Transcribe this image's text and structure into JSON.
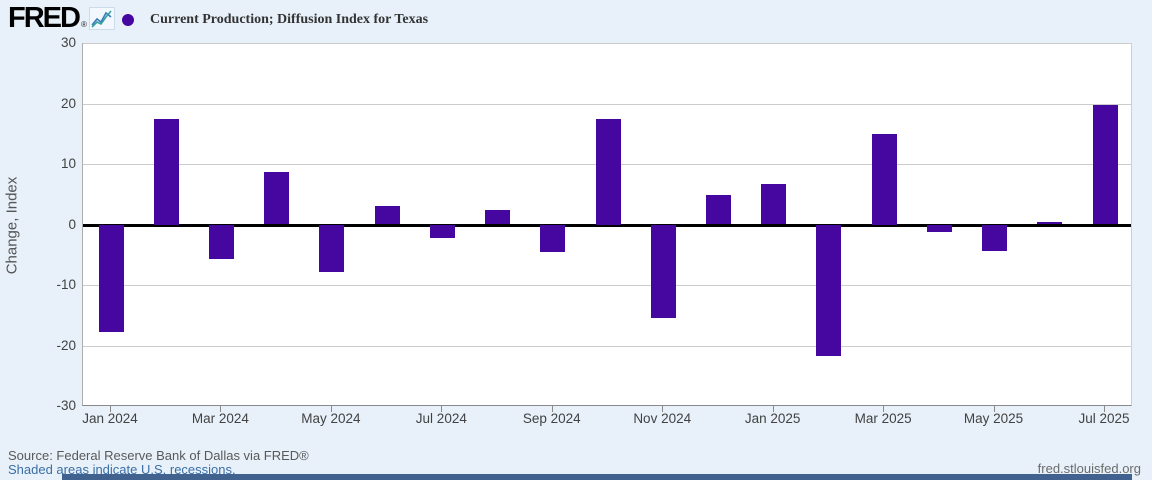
{
  "header": {
    "logo_text": "FRED",
    "registered_mark": "®",
    "legend_label": "Current Production; Diffusion Index for Texas"
  },
  "chart_data": {
    "type": "bar",
    "title": "Current Production; Diffusion Index for Texas",
    "xlabel": "",
    "ylabel": "Change, Index",
    "ylim": [
      -30,
      30
    ],
    "y_ticks": [
      30,
      20,
      10,
      0,
      -10,
      -20,
      -30
    ],
    "x_tick_labels": [
      "Jan 2024",
      "Mar 2024",
      "May 2024",
      "Jul 2024",
      "Sep 2024",
      "Nov 2024",
      "Jan 2025",
      "Mar 2025",
      "May 2025",
      "Jul 2025"
    ],
    "categories": [
      "Jan 2024",
      "Feb 2024",
      "Mar 2024",
      "Apr 2024",
      "May 2024",
      "Jun 2024",
      "Jul 2024",
      "Aug 2024",
      "Sep 2024",
      "Oct 2024",
      "Nov 2024",
      "Dec 2024",
      "Jan 2025",
      "Feb 2025",
      "Mar 2025",
      "Apr 2025",
      "May 2025",
      "Jun 2025",
      "Jul 2025"
    ],
    "values": [
      -17.8,
      17.5,
      -5.7,
      8.6,
      -7.8,
      3.1,
      -2.2,
      2.4,
      -4.6,
      17.5,
      -15.5,
      4.9,
      6.7,
      -21.7,
      15.0,
      -1.2,
      -4.4,
      0.4,
      19.8
    ],
    "bar_color": "#4607a0",
    "grid": true,
    "zero_line_color": "#000000",
    "legend_position": "top-left"
  },
  "footer": {
    "source": "Source: Federal Reserve Bank of Dallas via FRED®",
    "note": "Shaded areas indicate U.S. recessions.",
    "site": "fred.stlouisfed.org"
  },
  "colors": {
    "background": "#e8f1fa",
    "plot_background": "#ffffff",
    "bar": "#4607a0",
    "gridline": "#cccccc",
    "zero_line": "#000000",
    "axis_text": "#424242",
    "ylabel_text": "#555555",
    "source_text": "#595959",
    "link": "#3a6ea5",
    "bottom_strip": "#41618e",
    "logo_icon_teal": "#35a0a0",
    "logo_icon_blue": "#3a7bbf"
  }
}
